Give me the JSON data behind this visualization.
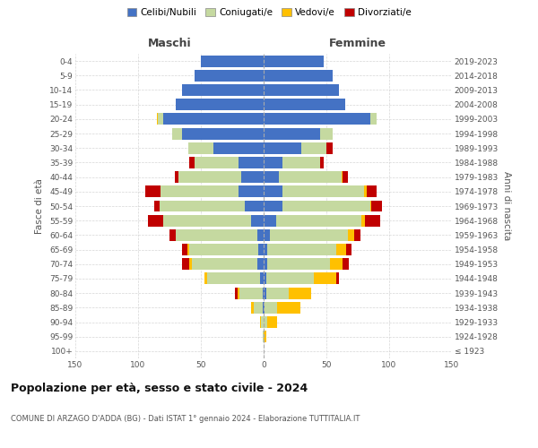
{
  "age_groups": [
    "100+",
    "95-99",
    "90-94",
    "85-89",
    "80-84",
    "75-79",
    "70-74",
    "65-69",
    "60-64",
    "55-59",
    "50-54",
    "45-49",
    "40-44",
    "35-39",
    "30-34",
    "25-29",
    "20-24",
    "15-19",
    "10-14",
    "5-9",
    "0-4"
  ],
  "birth_years": [
    "≤ 1923",
    "1924-1928",
    "1929-1933",
    "1934-1938",
    "1939-1943",
    "1944-1948",
    "1949-1953",
    "1954-1958",
    "1959-1963",
    "1964-1968",
    "1969-1973",
    "1974-1978",
    "1979-1983",
    "1984-1988",
    "1989-1993",
    "1994-1998",
    "1999-2003",
    "2004-2008",
    "2009-2013",
    "2014-2018",
    "2019-2023"
  ],
  "maschi": {
    "celibi": [
      0,
      0,
      0,
      1,
      1,
      3,
      5,
      4,
      5,
      10,
      15,
      20,
      18,
      20,
      40,
      65,
      80,
      70,
      65,
      55,
      50
    ],
    "coniugati": [
      0,
      1,
      2,
      7,
      18,
      42,
      52,
      55,
      65,
      70,
      68,
      62,
      50,
      35,
      20,
      8,
      4,
      0,
      0,
      0,
      0
    ],
    "vedovi": [
      0,
      0,
      1,
      2,
      2,
      2,
      2,
      2,
      0,
      0,
      0,
      0,
      0,
      0,
      0,
      0,
      1,
      0,
      0,
      0,
      0
    ],
    "divorziati": [
      0,
      0,
      0,
      0,
      2,
      0,
      6,
      4,
      5,
      12,
      4,
      12,
      3,
      4,
      0,
      0,
      0,
      0,
      0,
      0,
      0
    ]
  },
  "femmine": {
    "nubili": [
      0,
      0,
      0,
      1,
      2,
      2,
      3,
      3,
      5,
      10,
      15,
      15,
      12,
      15,
      30,
      45,
      85,
      65,
      60,
      55,
      48
    ],
    "coniugate": [
      0,
      0,
      3,
      10,
      18,
      38,
      50,
      55,
      62,
      68,
      70,
      65,
      50,
      30,
      20,
      10,
      5,
      0,
      0,
      0,
      0
    ],
    "vedove": [
      0,
      2,
      8,
      18,
      18,
      18,
      10,
      8,
      5,
      3,
      1,
      2,
      1,
      0,
      0,
      0,
      0,
      0,
      0,
      0,
      0
    ],
    "divorziate": [
      0,
      0,
      0,
      0,
      0,
      2,
      5,
      4,
      5,
      12,
      8,
      8,
      4,
      3,
      5,
      0,
      0,
      0,
      0,
      0,
      0
    ]
  },
  "colors": {
    "celibi": "#4472c4",
    "coniugati": "#c5d9a0",
    "vedovi": "#ffc000",
    "divorziati": "#c00000"
  },
  "xlim": 150,
  "title": "Popolazione per età, sesso e stato civile - 2024",
  "subtitle": "COMUNE DI ARZAGO D'ADDA (BG) - Dati ISTAT 1° gennaio 2024 - Elaborazione TUTTITALIA.IT",
  "maschi_label": "Maschi",
  "femmine_label": "Femmine",
  "ylabel": "Fasce di età",
  "ylabel_right": "Anni di nascita",
  "legend_labels": [
    "Celibi/Nubili",
    "Coniugati/e",
    "Vedovi/e",
    "Divorziati/e"
  ],
  "bg_color": "#ffffff",
  "grid_color": "#cccccc"
}
